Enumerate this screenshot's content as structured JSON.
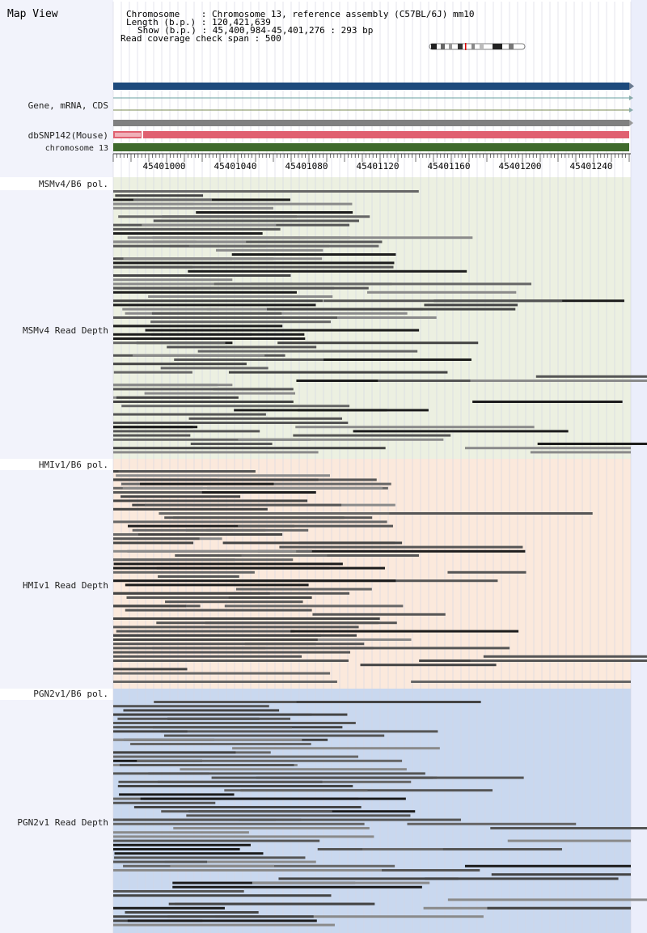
{
  "title": "Map View",
  "header": {
    "chromosome_label": "Chromosome",
    "chromosome_value": "Chromosome 13, reference assembly (C57BL/6J) mm10",
    "length_label": "Length (b.p.)",
    "length_value": "120,421,639",
    "show_label": "Show (b.p.)",
    "show_value": "45,400,984-45,401,276 : 293 bp",
    "coverage_label": "Read coverage check span",
    "coverage_value": "500"
  },
  "tracks": {
    "gene_label": "Gene, mRNA, CDS",
    "snp_label": "dbSNP142(Mouse)",
    "chrom_label": "chromosome 13"
  },
  "axis": {
    "ticks": [
      "45401000",
      "45401040",
      "45401080",
      "45401120",
      "45401160",
      "45401200",
      "45401240"
    ]
  },
  "panels": [
    {
      "pol_label": "MSMv4/B6 pol.",
      "depth_label": "MSMv4 Read Depth",
      "bg": "#ecf0e1"
    },
    {
      "pol_label": "HMIv1/B6 pol.",
      "depth_label": "HMIv1 Read Depth",
      "bg": "#fbe9dc"
    },
    {
      "pol_label": "PGN2v1/B6 pol.",
      "depth_label": "PGN2v1 Read Depth",
      "bg": "#c9d8ef"
    }
  ],
  "colors": {
    "gene_bar": "#1d4a7c",
    "snp_bar": "#e06070",
    "chrom_bar": "#3f6a2c",
    "read_dark": "#1c1c1c",
    "read_mid": "#555555",
    "read_light": "#8a8a8a"
  }
}
